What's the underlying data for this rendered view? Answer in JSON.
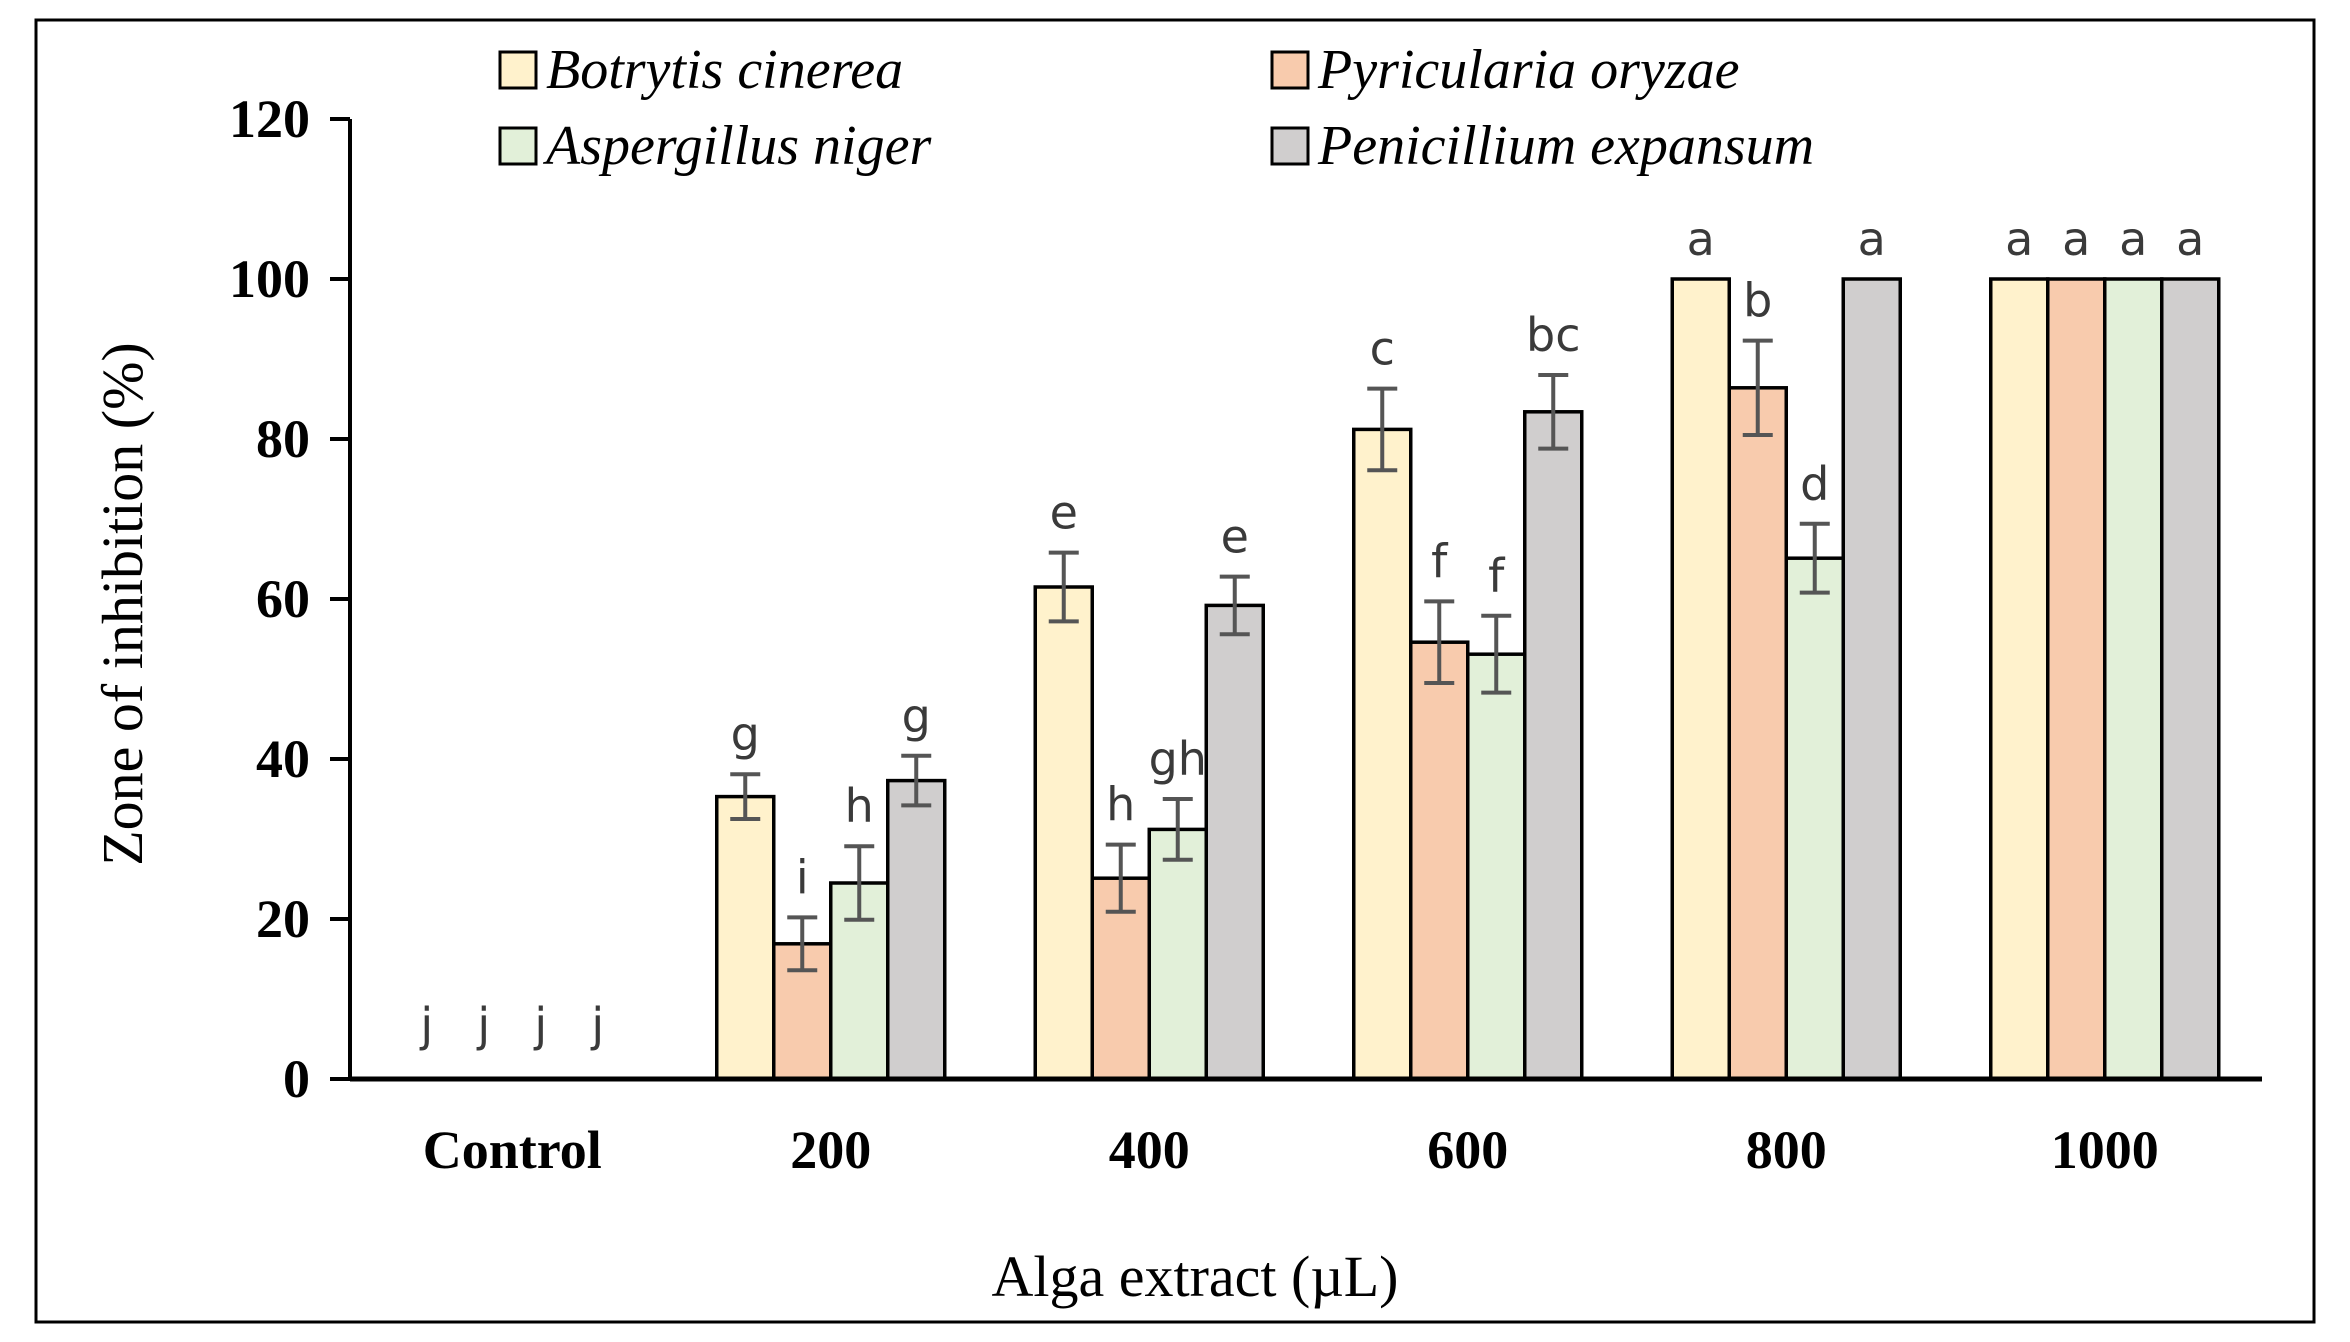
{
  "chart_data": {
    "type": "bar",
    "title": "",
    "xlabel": "Alga extract (µL)",
    "ylabel": "Zone of inhibition (%)",
    "ylim": [
      0,
      120
    ],
    "yticks": [
      0,
      20,
      40,
      60,
      80,
      100,
      120
    ],
    "categories": [
      "Control",
      "200",
      "400",
      "600",
      "800",
      "1000"
    ],
    "series": [
      {
        "name": "Botrytis cinerea",
        "color": "#FFF2CC",
        "values": [
          0,
          35.3,
          61.5,
          81.2,
          100,
          100
        ],
        "errors": [
          0,
          2.8,
          4.3,
          5.1,
          0,
          0
        ],
        "letters": [
          "j",
          "g",
          "e",
          "c",
          "a",
          "a"
        ]
      },
      {
        "name": "Pyricularia oryzae",
        "color": "#F8CBAD",
        "values": [
          0,
          16.9,
          25.1,
          54.6,
          86.4,
          100
        ],
        "errors": [
          0,
          3.3,
          4.2,
          5.1,
          5.9,
          0
        ],
        "letters": [
          "j",
          "i",
          "h",
          "f",
          "b",
          "a"
        ]
      },
      {
        "name": "Aspergillus niger",
        "color": "#E2F0D9",
        "values": [
          0,
          24.5,
          31.2,
          53.1,
          65.1,
          100
        ],
        "errors": [
          0,
          4.6,
          3.8,
          4.8,
          4.3,
          0
        ],
        "letters": [
          "j",
          "h",
          "gh",
          "f",
          "d",
          "a"
        ]
      },
      {
        "name": "Penicillium expansum",
        "color": "#D0CECE",
        "values": [
          0,
          37.3,
          59.2,
          83.4,
          100,
          100
        ],
        "errors": [
          0,
          3.1,
          3.6,
          4.6,
          0,
          0
        ],
        "letters": [
          "j",
          "g",
          "e",
          "bc",
          "a",
          "a"
        ]
      }
    ],
    "legend": {
      "placement": "top",
      "columns": 2
    }
  }
}
